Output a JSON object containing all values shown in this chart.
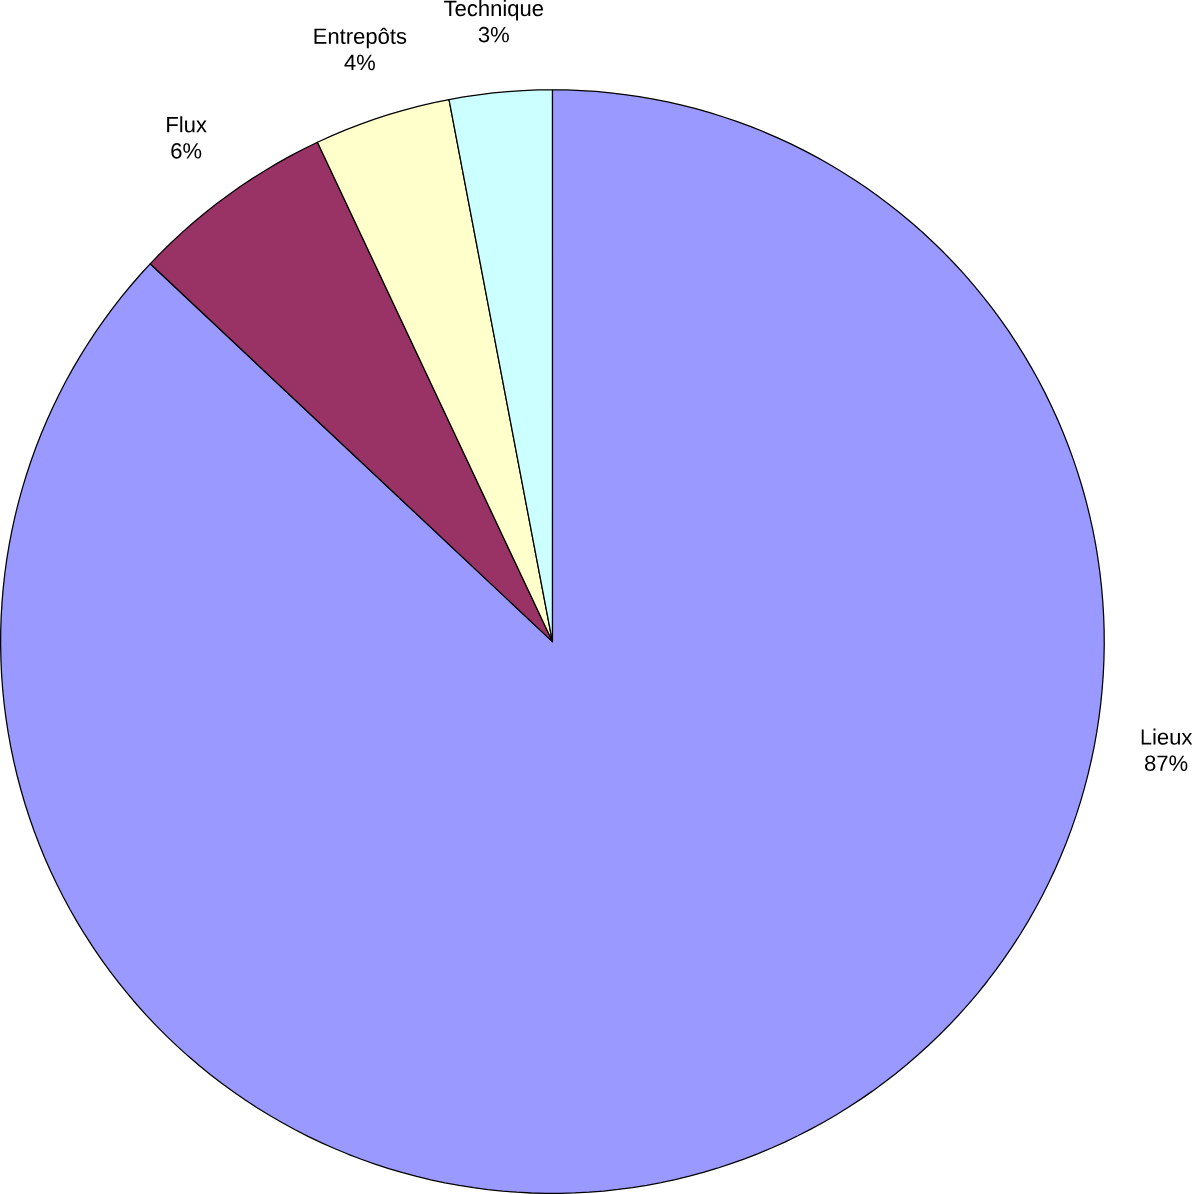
{
  "chart_data": {
    "type": "pie",
    "categories": [
      "Lieux",
      "Flux",
      "Entrepôts",
      "Technique"
    ],
    "values": [
      87,
      6,
      4,
      3
    ],
    "value_labels": [
      "87%",
      "6%",
      "4%",
      "3%"
    ],
    "colors": [
      "#9999ff",
      "#993366",
      "#ffffcc",
      "#ccffff"
    ]
  }
}
